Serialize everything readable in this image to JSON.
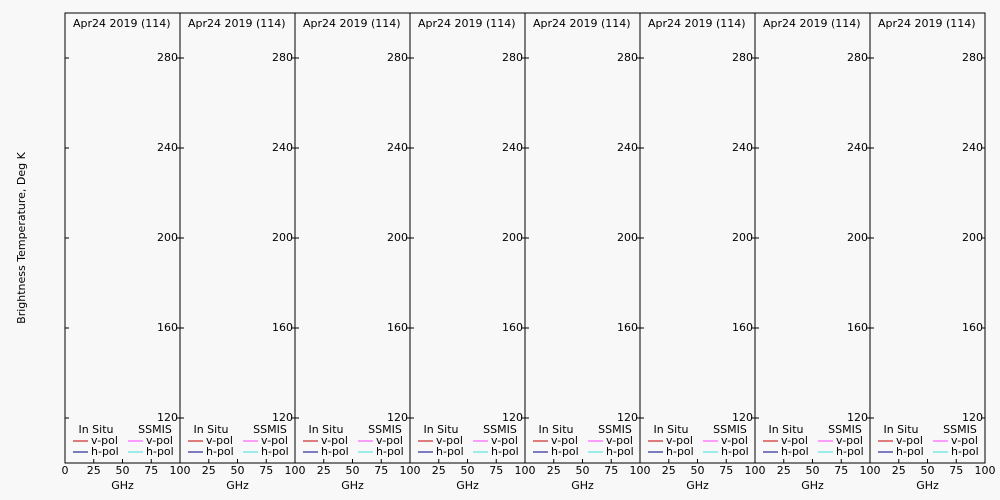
{
  "chart_data": [
    {
      "type": "line",
      "title": "Apr24 2019 (114)",
      "xlabel": "GHz",
      "ylabel": "Brightness Temperature, Deg K",
      "xlim": [
        0,
        100
      ],
      "xticks": [
        0,
        25,
        50,
        75,
        100
      ],
      "ylim": [
        100,
        300
      ],
      "yticks": [
        120,
        160,
        200,
        240,
        280
      ],
      "x": [],
      "series": [
        {
          "name": "v-pol",
          "group": "In Situ",
          "color": "#c00000",
          "values": []
        },
        {
          "name": "h-pol",
          "group": "In Situ",
          "color": "#000080",
          "values": []
        },
        {
          "name": "v-pol",
          "group": "SSMIS",
          "color": "#ff40ff",
          "values": []
        },
        {
          "name": "h-pol",
          "group": "SSMIS",
          "color": "#40e0e0",
          "values": []
        }
      ]
    },
    {
      "type": "line",
      "title": "Apr24 2019 (114)",
      "xlabel": "GHz",
      "xlim": [
        0,
        100
      ],
      "xticks": [
        25,
        50,
        75,
        100
      ],
      "ylim": [
        100,
        300
      ],
      "yticks": [
        120,
        160,
        200,
        240,
        280
      ],
      "x": [],
      "series": [
        {
          "name": "v-pol",
          "group": "In Situ",
          "color": "#c00000",
          "values": []
        },
        {
          "name": "h-pol",
          "group": "In Situ",
          "color": "#000080",
          "values": []
        },
        {
          "name": "v-pol",
          "group": "SSMIS",
          "color": "#ff40ff",
          "values": []
        },
        {
          "name": "h-pol",
          "group": "SSMIS",
          "color": "#40e0e0",
          "values": []
        }
      ]
    },
    {
      "type": "line",
      "title": "Apr24 2019 (114)",
      "xlabel": "GHz",
      "xlim": [
        0,
        100
      ],
      "xticks": [
        25,
        50,
        75,
        100
      ],
      "ylim": [
        100,
        300
      ],
      "yticks": [
        120,
        160,
        200,
        240,
        280
      ],
      "x": [],
      "series": [
        {
          "name": "v-pol",
          "group": "In Situ",
          "color": "#c00000",
          "values": []
        },
        {
          "name": "h-pol",
          "group": "In Situ",
          "color": "#000080",
          "values": []
        },
        {
          "name": "v-pol",
          "group": "SSMIS",
          "color": "#ff40ff",
          "values": []
        },
        {
          "name": "h-pol",
          "group": "SSMIS",
          "color": "#40e0e0",
          "values": []
        }
      ]
    },
    {
      "type": "line",
      "title": "Apr24 2019 (114)",
      "xlabel": "GHz",
      "xlim": [
        0,
        100
      ],
      "xticks": [
        25,
        50,
        75,
        100
      ],
      "ylim": [
        100,
        300
      ],
      "yticks": [
        120,
        160,
        200,
        240,
        280
      ],
      "x": [],
      "series": [
        {
          "name": "v-pol",
          "group": "In Situ",
          "color": "#c00000",
          "values": []
        },
        {
          "name": "h-pol",
          "group": "In Situ",
          "color": "#000080",
          "values": []
        },
        {
          "name": "v-pol",
          "group": "SSMIS",
          "color": "#ff40ff",
          "values": []
        },
        {
          "name": "h-pol",
          "group": "SSMIS",
          "color": "#40e0e0",
          "values": []
        }
      ]
    },
    {
      "type": "line",
      "title": "Apr24 2019 (114)",
      "xlabel": "GHz",
      "xlim": [
        0,
        100
      ],
      "xticks": [
        25,
        50,
        75,
        100
      ],
      "ylim": [
        100,
        300
      ],
      "yticks": [
        120,
        160,
        200,
        240,
        280
      ],
      "x": [],
      "series": [
        {
          "name": "v-pol",
          "group": "In Situ",
          "color": "#c00000",
          "values": []
        },
        {
          "name": "h-pol",
          "group": "In Situ",
          "color": "#000080",
          "values": []
        },
        {
          "name": "v-pol",
          "group": "SSMIS",
          "color": "#ff40ff",
          "values": []
        },
        {
          "name": "h-pol",
          "group": "SSMIS",
          "color": "#40e0e0",
          "values": []
        }
      ]
    },
    {
      "type": "line",
      "title": "Apr24 2019 (114)",
      "xlabel": "GHz",
      "xlim": [
        0,
        100
      ],
      "xticks": [
        25,
        50,
        75,
        100
      ],
      "ylim": [
        100,
        300
      ],
      "yticks": [
        120,
        160,
        200,
        240,
        280
      ],
      "x": [],
      "series": [
        {
          "name": "v-pol",
          "group": "In Situ",
          "color": "#c00000",
          "values": []
        },
        {
          "name": "h-pol",
          "group": "In Situ",
          "color": "#000080",
          "values": []
        },
        {
          "name": "v-pol",
          "group": "SSMIS",
          "color": "#ff40ff",
          "values": []
        },
        {
          "name": "h-pol",
          "group": "SSMIS",
          "color": "#40e0e0",
          "values": []
        }
      ]
    },
    {
      "type": "line",
      "title": "Apr24 2019 (114)",
      "xlabel": "GHz",
      "xlim": [
        0,
        100
      ],
      "xticks": [
        25,
        50,
        75,
        100
      ],
      "ylim": [
        100,
        300
      ],
      "yticks": [
        120,
        160,
        200,
        240,
        280
      ],
      "x": [],
      "series": [
        {
          "name": "v-pol",
          "group": "In Situ",
          "color": "#c00000",
          "values": []
        },
        {
          "name": "h-pol",
          "group": "In Situ",
          "color": "#000080",
          "values": []
        },
        {
          "name": "v-pol",
          "group": "SSMIS",
          "color": "#ff40ff",
          "values": []
        },
        {
          "name": "h-pol",
          "group": "SSMIS",
          "color": "#40e0e0",
          "values": []
        }
      ]
    },
    {
      "type": "line",
      "title": "Apr24 2019 (114)",
      "xlabel": "GHz",
      "xlim": [
        0,
        100
      ],
      "xticks": [
        25,
        50,
        75,
        100
      ],
      "ylim": [
        100,
        300
      ],
      "yticks": [
        120,
        160,
        200,
        240,
        280
      ],
      "x": [],
      "series": [
        {
          "name": "v-pol",
          "group": "In Situ",
          "color": "#c00000",
          "values": []
        },
        {
          "name": "h-pol",
          "group": "In Situ",
          "color": "#000080",
          "values": []
        },
        {
          "name": "v-pol",
          "group": "SSMIS",
          "color": "#ff40ff",
          "values": []
        },
        {
          "name": "h-pol",
          "group": "SSMIS",
          "color": "#40e0e0",
          "values": []
        }
      ]
    }
  ]
}
